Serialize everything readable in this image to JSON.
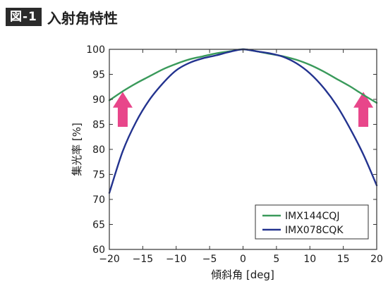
{
  "header": {
    "figure_label": "図-1",
    "title": "入射角特性"
  },
  "chart_data": {
    "type": "line",
    "xlabel": "傾斜角 [deg]",
    "ylabel": "集光率 [%]",
    "xlim": [
      -20,
      20
    ],
    "ylim": [
      60,
      100
    ],
    "xticks": [
      -20,
      -15,
      -10,
      -5,
      0,
      5,
      10,
      15,
      20
    ],
    "xtick_labels": [
      "−20",
      "−15",
      "−10",
      "−5",
      "0",
      "5",
      "10",
      "15",
      "20"
    ],
    "yticks": [
      60,
      65,
      70,
      75,
      80,
      85,
      90,
      95,
      100
    ],
    "ytick_labels": [
      "60",
      "65",
      "70",
      "75",
      "80",
      "85",
      "90",
      "95",
      "100"
    ],
    "grid": false,
    "legend_position": "bottom-right",
    "series": [
      {
        "name": "IMX144CQJ",
        "color": "#3a9a5b",
        "x": [
          -20,
          -18,
          -16,
          -14,
          -12,
          -10,
          -8,
          -6,
          -4,
          -2,
          0,
          2,
          4,
          6,
          8,
          10,
          12,
          14,
          16,
          18,
          20
        ],
        "y": [
          89.8,
          91.6,
          93.2,
          94.6,
          96.0,
          97.1,
          98.0,
          98.6,
          99.2,
          99.6,
          100,
          99.6,
          99.1,
          98.6,
          97.9,
          96.9,
          95.6,
          94.1,
          92.6,
          90.9,
          89.3
        ]
      },
      {
        "name": "IMX078CQK",
        "color": "#23338f",
        "x": [
          -20,
          -18,
          -16,
          -14,
          -12,
          -10,
          -8,
          -6,
          -4,
          -2,
          0,
          2,
          4,
          6,
          8,
          10,
          12,
          14,
          16,
          18,
          20
        ],
        "y": [
          71.3,
          79.6,
          85.5,
          89.9,
          93.2,
          95.8,
          97.3,
          98.2,
          98.8,
          99.5,
          100,
          99.6,
          99.2,
          98.5,
          97.2,
          95.2,
          92.4,
          88.8,
          84.2,
          79.0,
          72.8
        ]
      }
    ],
    "annotations": [
      {
        "type": "arrow-up",
        "x": -18,
        "y_from": 84.5,
        "y_to": 91.5,
        "color": "#e8468a"
      },
      {
        "type": "arrow-up",
        "x": 18,
        "y_from": 84.5,
        "y_to": 91.5,
        "color": "#e8468a"
      }
    ]
  }
}
